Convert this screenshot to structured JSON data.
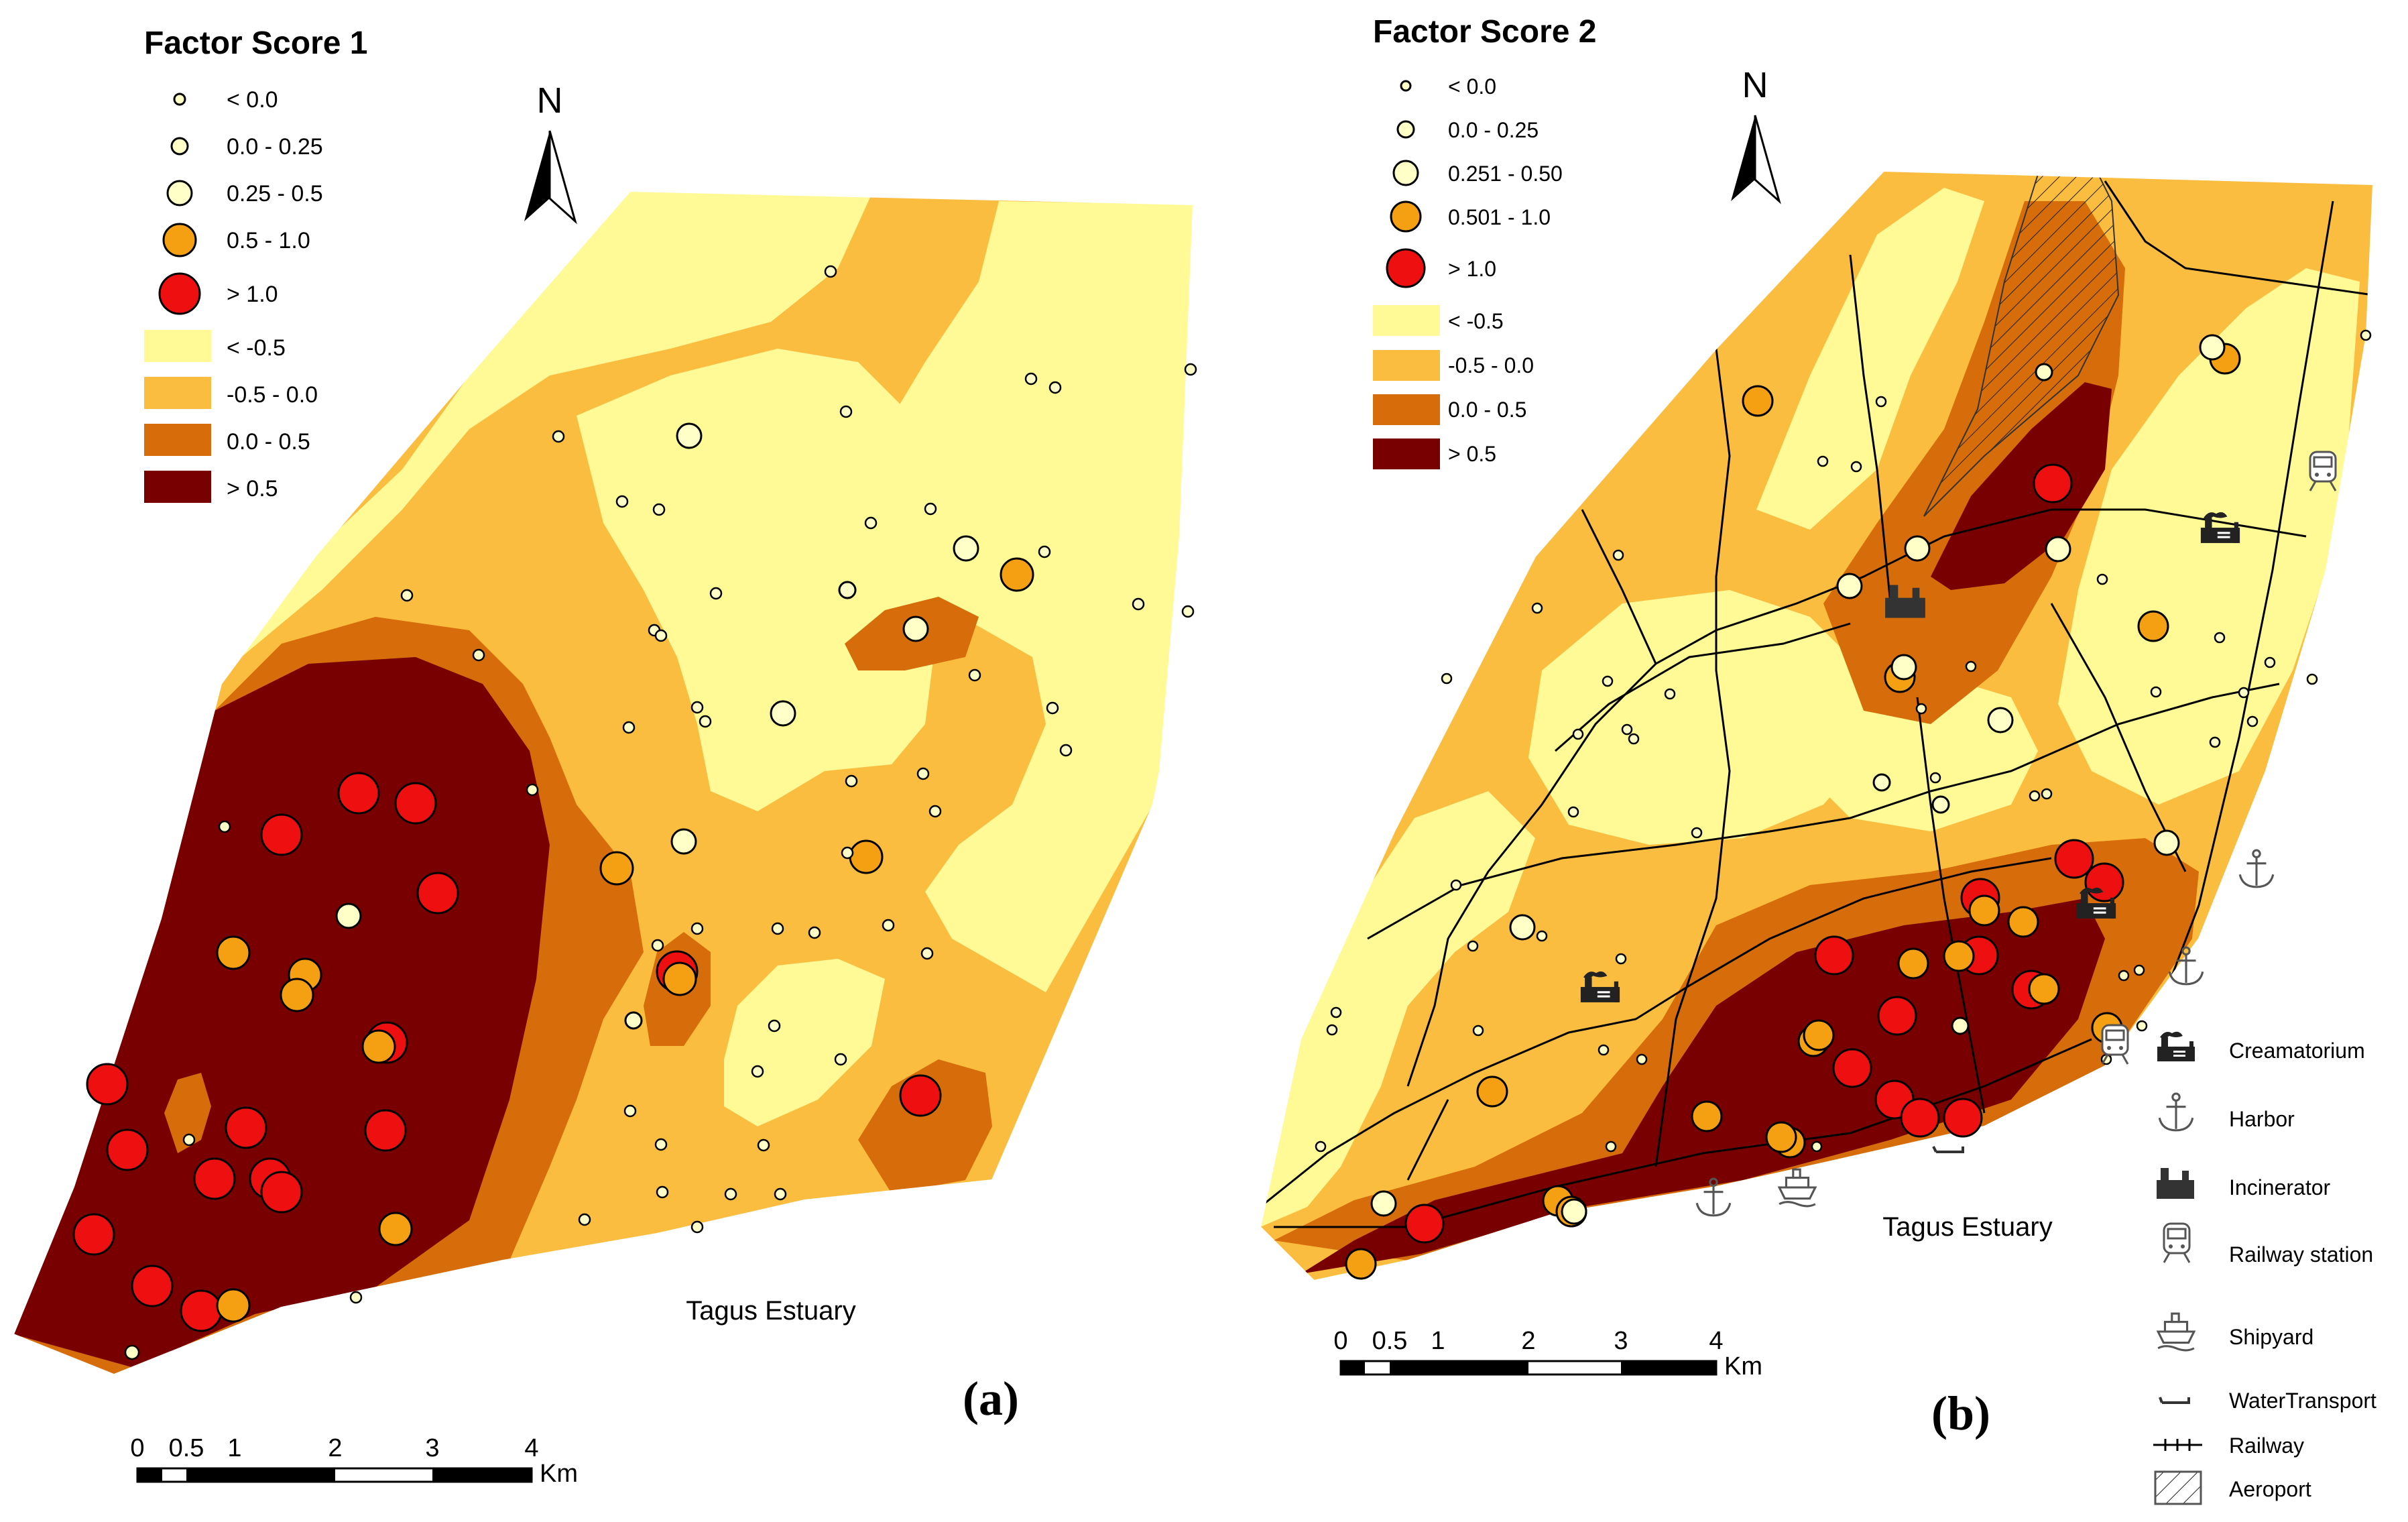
{
  "panel_a": {
    "legend_title": "Factor Score 1",
    "point_classes": [
      "< 0.0",
      "0.0 - 0.25",
      "0.25 - 0.5",
      "0.5 - 1.0",
      "> 1.0"
    ],
    "zone_classes": [
      "< -0.5",
      "-0.5 - 0.0",
      "0.0 - 0.5",
      "> 0.5"
    ],
    "estuary_label": "Tagus Estuary",
    "panel_label": "(a)",
    "scale_ticks": [
      "0",
      "0.5",
      "1",
      "2",
      "3",
      "4"
    ],
    "scale_unit": "Km",
    "north_label": "N"
  },
  "panel_b": {
    "legend_title": "Factor Score 2",
    "point_classes": [
      "< 0.0",
      "0.0 - 0.25",
      "0.251 - 0.50",
      "0.501 - 1.0",
      "> 1.0"
    ],
    "zone_classes": [
      "< -0.5",
      "-0.5 - 0.0",
      "0.0 - 0.5",
      "> 0.5"
    ],
    "estuary_label": "Tagus Estuary",
    "panel_label": "(b)",
    "scale_ticks": [
      "0",
      "0.5",
      "1",
      "2",
      "3",
      "4"
    ],
    "scale_unit": "Km",
    "north_label": "N",
    "feature_legend": [
      "Creamatorium",
      "Harbor",
      "Incinerator",
      "Railway station",
      "Shipyard",
      "WaterTransport",
      "Railway",
      "Aeroport"
    ]
  },
  "colors": {
    "zone_lt_neg05": "#FFFA96",
    "zone_neg05_0": "#FBBD40",
    "zone_0_05": "#D66C0A",
    "zone_gt_05": "#780000",
    "pt_small": "#FFFFC8",
    "pt_mid": "#F5A012",
    "pt_high": "#EE1010"
  }
}
